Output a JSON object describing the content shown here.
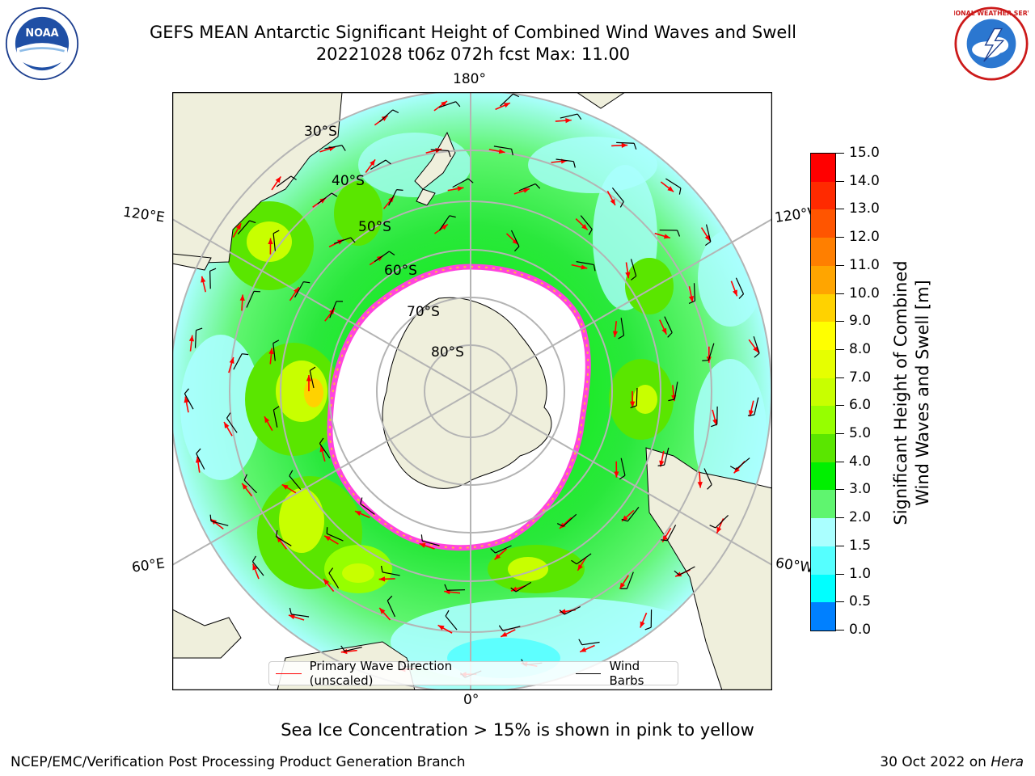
{
  "header": {
    "title_line1": "GEFS MEAN Antarctic Significant Height of Combined Wind Waves and Swell",
    "title_line2": "20221028 t06z 072h fcst   Max: 11.00"
  },
  "logos": {
    "left": {
      "icon": "noaa-logo",
      "text": "NOAA"
    },
    "right": {
      "icon": "nws-logo",
      "text": "NATIONAL WEATHER SERVICE"
    }
  },
  "map": {
    "projection": "south-polar-stereographic",
    "longitude_labels": {
      "top": "180°",
      "upper_left": "120°E",
      "upper_right": "120°W",
      "lower_left": "60°E",
      "lower_right": "60°W",
      "bottom": "0°"
    },
    "latitude_labels": [
      "30°S",
      "40°S",
      "50°S",
      "60°S",
      "70°S",
      "80°S"
    ],
    "colors": {
      "ocean_base": "#5ff56f",
      "land": "#efefdc",
      "ice_shelf": "#ffffff",
      "sea_ice_pink": "#ff44dd",
      "sea_ice_yellow": "#ffb840",
      "wave_arrow": "#ff0000",
      "wind_barb": "#000000",
      "graticule": "#b4b4b4"
    }
  },
  "colorbar": {
    "title_line1": "Significant Height of Combined",
    "title_line2": "Wind Waves and Swell [m]",
    "levels": [
      "15.0",
      "14.0",
      "13.0",
      "12.0",
      "11.0",
      "10.0",
      "9.0",
      "8.0",
      "7.0",
      "6.0",
      "5.0",
      "4.0",
      "3.0",
      "2.0",
      "1.5",
      "1.0",
      "0.5",
      "0.0"
    ],
    "colors": [
      "#ff0000",
      "#ff2a00",
      "#ff5500",
      "#ff7f00",
      "#ffa500",
      "#ffd200",
      "#ffff00",
      "#e6ff00",
      "#c8ff00",
      "#96ff00",
      "#5ae600",
      "#00f000",
      "#5ff56f",
      "#aaffff",
      "#55ffff",
      "#00ffff",
      "#0080ff",
      "#0000ff"
    ]
  },
  "legend": {
    "wave_direction_label": "Primary Wave Direction (unscaled)",
    "wind_barbs_label": "Wind Barbs"
  },
  "subnote": "Sea Ice Concentration > 15% is shown in pink to yellow",
  "footer": {
    "left": "NCEP/EMC/Verification Post Processing Product Generation Branch",
    "right_prefix": "30 Oct 2022 on ",
    "right_machine": "Hera"
  }
}
